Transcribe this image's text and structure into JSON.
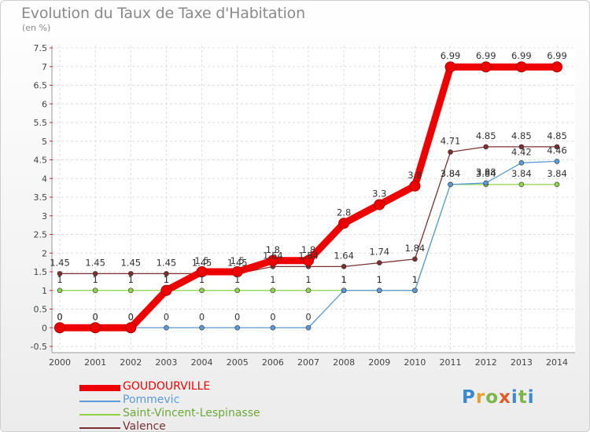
{
  "title": "Evolution du Taux de Taxe d'Habitation",
  "unit": "(en %)",
  "logo": "Proxiti",
  "chart_data": {
    "type": "line",
    "x": [
      "2000",
      "2001",
      "2002",
      "2003",
      "2004",
      "2005",
      "2006",
      "2007",
      "2008",
      "2009",
      "2010",
      "2011",
      "2012",
      "2013",
      "2014"
    ],
    "ylim": [
      -0.5,
      7.5
    ],
    "yticks": [
      "-0.5",
      "0",
      "0.5",
      "1",
      "1.5",
      "2",
      "2.5",
      "3",
      "3.5",
      "4",
      "4.5",
      "5",
      "5.5",
      "6",
      "6.5",
      "7",
      "7.5"
    ],
    "grid": true,
    "legend_position": "bottom",
    "series": [
      {
        "name": "GOUDOURVILLE",
        "color": "#ee0000",
        "values": [
          0,
          0,
          0,
          1,
          1.5,
          1.5,
          1.8,
          1.8,
          2.8,
          3.3,
          3.8,
          6.99,
          6.99,
          6.99,
          6.99
        ],
        "labels": [
          "0",
          "0",
          "0",
          "1",
          "1.5",
          "1.5",
          "1.8",
          "1.8",
          "2.8",
          "3.3",
          "3.8",
          "6.99",
          "6.99",
          "6.99",
          "6.99"
        ]
      },
      {
        "name": "Pommevic",
        "color": "#5b9bd5",
        "values": [
          0,
          0,
          0,
          0,
          0,
          0,
          0,
          0,
          1,
          1,
          1,
          3.84,
          3.88,
          4.42,
          4.46
        ],
        "labels": [
          "0",
          "0",
          "0",
          "0",
          "0",
          "0",
          "0",
          "0",
          "1",
          "1",
          "1",
          "3.84",
          "3.88",
          "4.42",
          "4.46"
        ]
      },
      {
        "name": "Saint-Vincent-Lespinasse",
        "color": "#8ed24a",
        "values": [
          1,
          1,
          1,
          1,
          1,
          1,
          1,
          1,
          1,
          1,
          1,
          3.84,
          3.84,
          3.84,
          3.84
        ],
        "labels": [
          "1",
          "1",
          "1",
          "1",
          "1",
          "1",
          "1",
          "1",
          "1",
          "1",
          "1",
          "3.84",
          "3.84",
          "3.84",
          "3.84"
        ]
      },
      {
        "name": "Valence",
        "color": "#7b3030",
        "values": [
          1.45,
          1.45,
          1.45,
          1.45,
          1.45,
          1.45,
          1.64,
          1.64,
          1.64,
          1.74,
          1.84,
          4.71,
          4.85,
          4.85,
          4.85
        ],
        "labels": [
          "1.45",
          "1.45",
          "1.45",
          "1.45",
          "1.45",
          "1.45",
          "1.64",
          "1.64",
          "1.64",
          "1.74",
          "1.84",
          "4.71",
          "4.85",
          "4.85",
          "4.85"
        ]
      }
    ]
  }
}
